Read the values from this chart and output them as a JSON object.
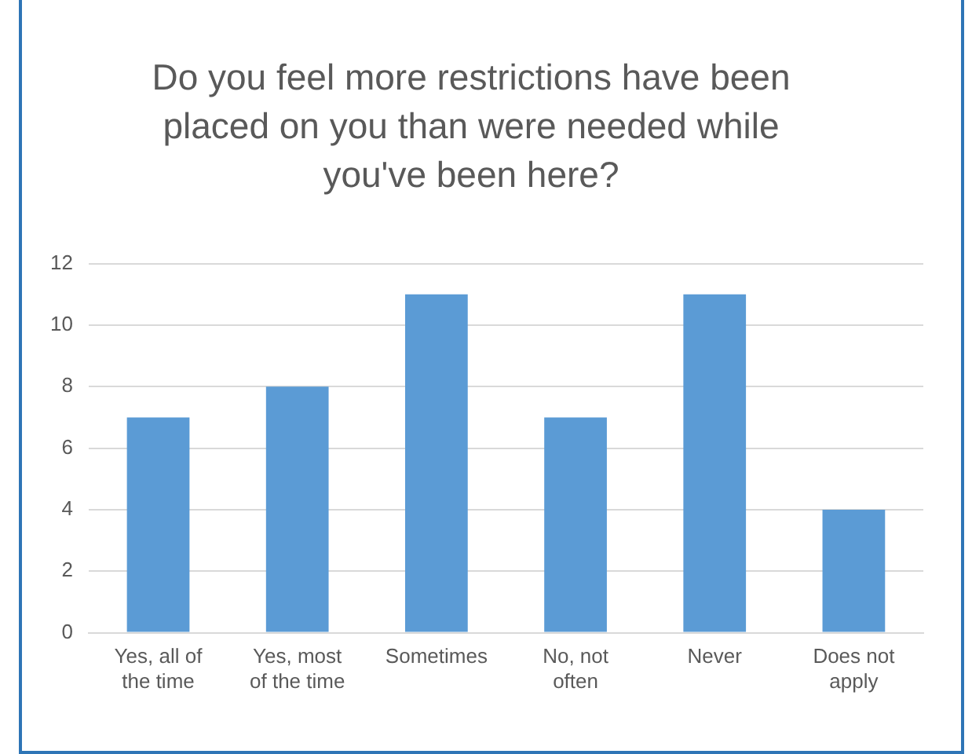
{
  "chart_data": {
    "type": "bar",
    "title": "Do you feel more restrictions have been placed on you than were needed while you've been here?",
    "categories": [
      "Yes, all of the time",
      "Yes, most of the time",
      "Sometimes",
      "No, not often",
      "Never",
      "Does not apply"
    ],
    "values": [
      7,
      8,
      11,
      7,
      11,
      4
    ],
    "color": "#5b9bd5",
    "ylim": [
      0,
      12
    ],
    "yticks": [
      0,
      2,
      4,
      6,
      8,
      10,
      12
    ],
    "grid": "y",
    "legend": false
  }
}
